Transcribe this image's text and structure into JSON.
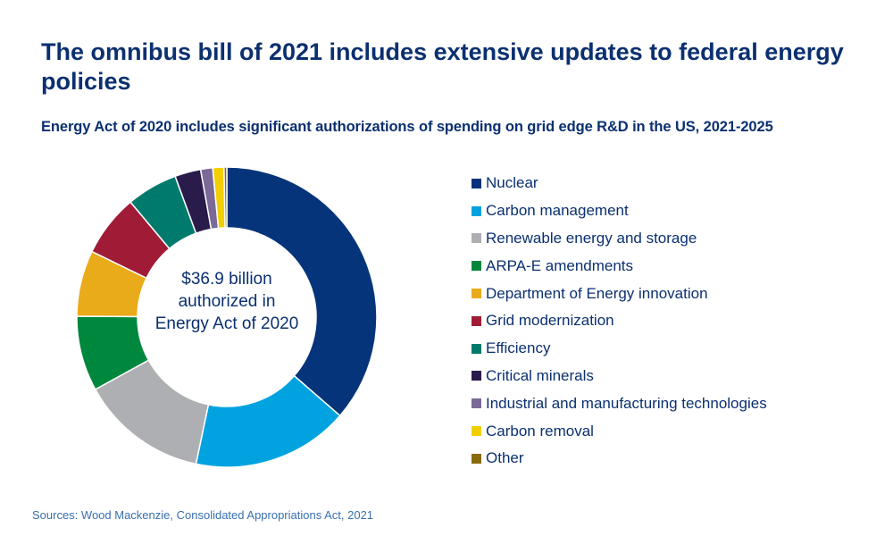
{
  "title": "The omnibus bill of 2021 includes extensive updates to federal energy policies",
  "subtitle": "Energy Act of 2020 includes significant authorizations of spending on grid edge R&D in the US, 2021-2025",
  "source": "Sources: Wood Mackenzie, Consolidated Appropriations Act, 2021",
  "chart_data": {
    "type": "pie",
    "donut": true,
    "center_label": [
      "$36.9 billion",
      "authorized in",
      "Energy Act of 2020"
    ],
    "legend_position": "right",
    "unit": "percent of total (estimated)",
    "categories": [
      "Nuclear",
      "Carbon management",
      "Renewable energy and storage",
      "ARPA-E amendments",
      "Department of Energy innovation",
      "Grid modernization",
      "Efficiency",
      "Critical minerals",
      "Industrial and manufacturing technologies",
      "Carbon removal",
      "Other"
    ],
    "values": [
      36.4,
      16.9,
      13.7,
      8.1,
      7.1,
      6.7,
      5.5,
      2.8,
      1.3,
      1.2,
      0.3
    ],
    "colors": [
      "#06347a",
      "#00a3e0",
      "#adafb2",
      "#00873e",
      "#eaab1a",
      "#a01c36",
      "#007a6c",
      "#291b4a",
      "#7b6a98",
      "#f2cf00",
      "#8a6a10"
    ]
  }
}
